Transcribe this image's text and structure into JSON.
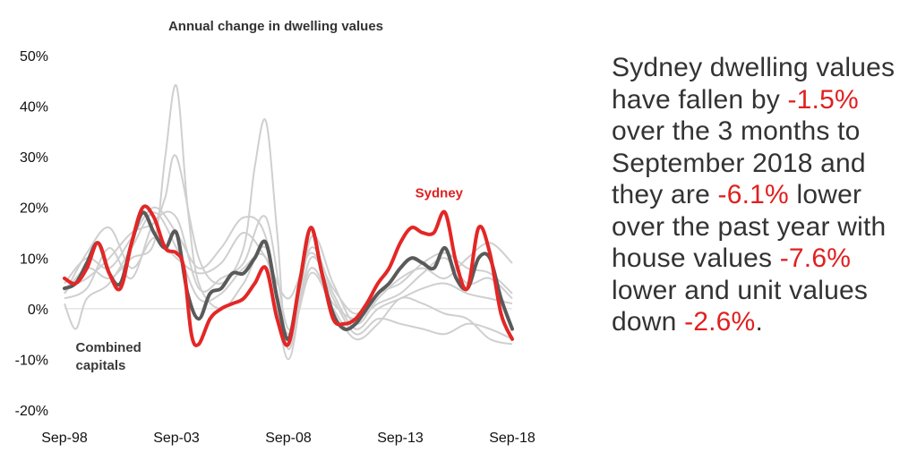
{
  "chart_data": {
    "type": "line",
    "title": "Annual change in dwelling values",
    "ylim": [
      -0.2,
      0.5
    ],
    "yticks": [
      "50%",
      "40%",
      "30%",
      "20%",
      "10%",
      "0%",
      "-10%",
      "-20%"
    ],
    "ytick_values": [
      0.5,
      0.4,
      0.3,
      0.2,
      0.1,
      0.0,
      -0.1,
      -0.2
    ],
    "xlim": [
      "1998-09",
      "2018-09"
    ],
    "xticks": [
      "Sep-98",
      "Sep-03",
      "Sep-08",
      "Sep-13",
      "Sep-18"
    ],
    "xtick_dates": [
      "1998-09",
      "2003-09",
      "2008-09",
      "2013-09",
      "2018-09"
    ],
    "annotations": [
      {
        "text_lines": [
          "Combined",
          "capitals"
        ],
        "color": "#3a3a3a",
        "anchor": {
          "x": "1999-03",
          "y": -0.085
        }
      },
      {
        "text_lines": [
          "Sydney"
        ],
        "color": "#e02020",
        "anchor": {
          "x": "2014-05",
          "y": 0.22
        }
      }
    ],
    "series": [
      {
        "name": "Sydney",
        "role": "highlight",
        "color": "#e32726",
        "points": [
          [
            "1998-09",
            0.06
          ],
          [
            "1999-03",
            0.05
          ],
          [
            "1999-09",
            0.08
          ],
          [
            "2000-03",
            0.13
          ],
          [
            "2000-09",
            0.07
          ],
          [
            "2001-03",
            0.04
          ],
          [
            "2001-09",
            0.13
          ],
          [
            "2002-03",
            0.2
          ],
          [
            "2002-09",
            0.18
          ],
          [
            "2003-03",
            0.12
          ],
          [
            "2003-09",
            0.11
          ],
          [
            "2004-01",
            0.08
          ],
          [
            "2004-05",
            -0.05
          ],
          [
            "2004-09",
            -0.07
          ],
          [
            "2005-03",
            -0.02
          ],
          [
            "2005-09",
            0.0
          ],
          [
            "2006-03",
            0.01
          ],
          [
            "2006-09",
            0.02
          ],
          [
            "2007-03",
            0.05
          ],
          [
            "2007-09",
            0.08
          ],
          [
            "2008-03",
            -0.02
          ],
          [
            "2008-09",
            -0.07
          ],
          [
            "2009-03",
            0.05
          ],
          [
            "2009-09",
            0.16
          ],
          [
            "2010-03",
            0.07
          ],
          [
            "2010-09",
            -0.02
          ],
          [
            "2011-03",
            -0.03
          ],
          [
            "2011-09",
            -0.02
          ],
          [
            "2012-03",
            0.01
          ],
          [
            "2012-09",
            0.05
          ],
          [
            "2013-03",
            0.08
          ],
          [
            "2013-09",
            0.13
          ],
          [
            "2014-03",
            0.16
          ],
          [
            "2014-09",
            0.15
          ],
          [
            "2015-03",
            0.15
          ],
          [
            "2015-09",
            0.19
          ],
          [
            "2016-03",
            0.09
          ],
          [
            "2016-09",
            0.04
          ],
          [
            "2017-03",
            0.16
          ],
          [
            "2017-09",
            0.11
          ],
          [
            "2018-03",
            -0.01
          ],
          [
            "2018-09",
            -0.06
          ]
        ]
      },
      {
        "name": "Combined capitals",
        "role": "highlight",
        "color": "#5a5a5a",
        "points": [
          [
            "1998-09",
            0.04
          ],
          [
            "1999-03",
            0.05
          ],
          [
            "1999-09",
            0.09
          ],
          [
            "2000-03",
            0.13
          ],
          [
            "2000-09",
            0.07
          ],
          [
            "2001-03",
            0.05
          ],
          [
            "2001-09",
            0.13
          ],
          [
            "2002-03",
            0.19
          ],
          [
            "2002-09",
            0.15
          ],
          [
            "2003-03",
            0.12
          ],
          [
            "2003-09",
            0.15
          ],
          [
            "2004-03",
            0.03
          ],
          [
            "2004-09",
            -0.02
          ],
          [
            "2005-03",
            0.03
          ],
          [
            "2005-09",
            0.04
          ],
          [
            "2006-03",
            0.07
          ],
          [
            "2006-09",
            0.07
          ],
          [
            "2007-03",
            0.1
          ],
          [
            "2007-09",
            0.13
          ],
          [
            "2008-03",
            0.02
          ],
          [
            "2008-09",
            -0.06
          ],
          [
            "2009-03",
            0.05
          ],
          [
            "2009-09",
            0.16
          ],
          [
            "2010-03",
            0.07
          ],
          [
            "2010-09",
            -0.01
          ],
          [
            "2011-03",
            -0.04
          ],
          [
            "2011-09",
            -0.03
          ],
          [
            "2012-03",
            0.0
          ],
          [
            "2012-09",
            0.03
          ],
          [
            "2013-03",
            0.05
          ],
          [
            "2013-09",
            0.08
          ],
          [
            "2014-03",
            0.1
          ],
          [
            "2014-09",
            0.09
          ],
          [
            "2015-03",
            0.08
          ],
          [
            "2015-09",
            0.12
          ],
          [
            "2016-03",
            0.06
          ],
          [
            "2016-09",
            0.04
          ],
          [
            "2017-03",
            0.1
          ],
          [
            "2017-09",
            0.1
          ],
          [
            "2018-03",
            0.02
          ],
          [
            "2018-09",
            -0.04
          ]
        ]
      },
      {
        "role": "context",
        "color": "#cfcfcf",
        "points": [
          [
            "1998-09",
            0.03
          ],
          [
            "1999-09",
            0.08
          ],
          [
            "2000-09",
            0.06
          ],
          [
            "2001-09",
            0.1
          ],
          [
            "2002-09",
            0.13
          ],
          [
            "2003-03",
            0.3
          ],
          [
            "2003-09",
            0.44
          ],
          [
            "2004-03",
            0.2
          ],
          [
            "2004-09",
            0.05
          ],
          [
            "2005-09",
            0.0
          ],
          [
            "2006-09",
            0.05
          ],
          [
            "2007-09",
            0.12
          ],
          [
            "2008-09",
            -0.05
          ],
          [
            "2009-09",
            0.12
          ],
          [
            "2010-09",
            0.03
          ],
          [
            "2011-09",
            -0.04
          ],
          [
            "2012-09",
            0.0
          ],
          [
            "2013-09",
            0.02
          ],
          [
            "2014-09",
            0.04
          ],
          [
            "2015-09",
            0.05
          ],
          [
            "2016-09",
            0.03
          ],
          [
            "2017-09",
            0.02
          ],
          [
            "2018-09",
            0.01
          ]
        ]
      },
      {
        "role": "context",
        "color": "#cfcfcf",
        "points": [
          [
            "1998-09",
            0.04
          ],
          [
            "1999-09",
            0.06
          ],
          [
            "2000-09",
            0.1
          ],
          [
            "2001-09",
            0.15
          ],
          [
            "2002-09",
            0.17
          ],
          [
            "2003-03",
            0.22
          ],
          [
            "2003-09",
            0.3
          ],
          [
            "2004-09",
            0.1
          ],
          [
            "2005-09",
            0.05
          ],
          [
            "2006-09",
            0.12
          ],
          [
            "2007-03",
            0.28
          ],
          [
            "2007-09",
            0.37
          ],
          [
            "2008-03",
            0.15
          ],
          [
            "2008-09",
            -0.08
          ],
          [
            "2009-09",
            0.1
          ],
          [
            "2010-09",
            0.02
          ],
          [
            "2011-09",
            -0.05
          ],
          [
            "2012-09",
            -0.02
          ],
          [
            "2013-09",
            -0.03
          ],
          [
            "2014-09",
            -0.04
          ],
          [
            "2015-09",
            -0.05
          ],
          [
            "2016-09",
            -0.03
          ],
          [
            "2017-09",
            -0.04
          ],
          [
            "2018-09",
            -0.06
          ]
        ]
      },
      {
        "role": "context",
        "color": "#cfcfcf",
        "points": [
          [
            "1998-09",
            0.05
          ],
          [
            "1999-09",
            0.1
          ],
          [
            "2000-09",
            0.08
          ],
          [
            "2001-09",
            0.14
          ],
          [
            "2002-09",
            0.2
          ],
          [
            "2003-09",
            0.15
          ],
          [
            "2004-09",
            0.08
          ],
          [
            "2005-09",
            0.12
          ],
          [
            "2006-09",
            0.18
          ],
          [
            "2007-09",
            0.14
          ],
          [
            "2008-09",
            -0.1
          ],
          [
            "2009-09",
            0.14
          ],
          [
            "2010-09",
            0.05
          ],
          [
            "2011-09",
            -0.03
          ],
          [
            "2012-09",
            0.02
          ],
          [
            "2013-09",
            0.06
          ],
          [
            "2014-09",
            0.08
          ],
          [
            "2015-09",
            0.06
          ],
          [
            "2016-09",
            0.1
          ],
          [
            "2017-09",
            0.13
          ],
          [
            "2018-09",
            0.09
          ]
        ]
      },
      {
        "role": "context",
        "color": "#cfcfcf",
        "points": [
          [
            "1998-09",
            0.02
          ],
          [
            "1999-09",
            0.04
          ],
          [
            "2000-09",
            0.12
          ],
          [
            "2001-09",
            0.06
          ],
          [
            "2002-09",
            0.17
          ],
          [
            "2003-09",
            0.18
          ],
          [
            "2004-09",
            0.04
          ],
          [
            "2005-09",
            0.06
          ],
          [
            "2006-09",
            0.09
          ],
          [
            "2007-09",
            0.18
          ],
          [
            "2008-09",
            -0.04
          ],
          [
            "2009-09",
            0.08
          ],
          [
            "2010-09",
            0.01
          ],
          [
            "2011-09",
            -0.02
          ],
          [
            "2012-09",
            0.01
          ],
          [
            "2013-09",
            0.03
          ],
          [
            "2014-09",
            0.07
          ],
          [
            "2015-09",
            0.1
          ],
          [
            "2016-09",
            0.05
          ],
          [
            "2017-09",
            0.06
          ],
          [
            "2018-09",
            0.02
          ]
        ]
      },
      {
        "role": "context",
        "color": "#cfcfcf",
        "points": [
          [
            "1998-09",
            0.01
          ],
          [
            "1999-03",
            -0.04
          ],
          [
            "1999-09",
            0.02
          ],
          [
            "2000-09",
            0.05
          ],
          [
            "2001-09",
            0.12
          ],
          [
            "2002-09",
            0.19
          ],
          [
            "2003-09",
            0.12
          ],
          [
            "2004-09",
            0.02
          ],
          [
            "2005-09",
            0.03
          ],
          [
            "2006-09",
            0.08
          ],
          [
            "2007-09",
            0.1
          ],
          [
            "2008-09",
            -0.06
          ],
          [
            "2009-09",
            0.07
          ],
          [
            "2010-09",
            0.0
          ],
          [
            "2011-09",
            -0.06
          ],
          [
            "2012-09",
            -0.03
          ],
          [
            "2013-09",
            0.02
          ],
          [
            "2014-09",
            0.01
          ],
          [
            "2015-09",
            -0.01
          ],
          [
            "2016-09",
            -0.02
          ],
          [
            "2017-09",
            -0.06
          ],
          [
            "2018-09",
            -0.07
          ]
        ]
      },
      {
        "role": "context",
        "color": "#cfcfcf",
        "points": [
          [
            "1998-09",
            0.03
          ],
          [
            "1999-09",
            0.11
          ],
          [
            "2000-09",
            0.16
          ],
          [
            "2001-09",
            0.08
          ],
          [
            "2002-09",
            0.14
          ],
          [
            "2003-09",
            0.1
          ],
          [
            "2004-09",
            0.07
          ],
          [
            "2005-09",
            0.09
          ],
          [
            "2006-09",
            0.15
          ],
          [
            "2007-09",
            0.1
          ],
          [
            "2008-09",
            0.02
          ],
          [
            "2009-09",
            0.11
          ],
          [
            "2010-09",
            0.04
          ],
          [
            "2011-09",
            -0.01
          ],
          [
            "2012-09",
            0.03
          ],
          [
            "2013-09",
            0.05
          ],
          [
            "2014-09",
            0.09
          ],
          [
            "2015-09",
            0.11
          ],
          [
            "2016-09",
            0.08
          ],
          [
            "2017-09",
            0.07
          ],
          [
            "2018-09",
            0.03
          ]
        ]
      }
    ]
  },
  "side_text": [
    {
      "text": "Sydney dwelling values have fallen by ",
      "highlight": false
    },
    {
      "text": "-1.5%",
      "highlight": true
    },
    {
      "text": " over the 3 months to September 2018 and they are ",
      "highlight": false
    },
    {
      "text": "-6.1%",
      "highlight": true
    },
    {
      "text": " lower over the past year  with house values ",
      "highlight": false
    },
    {
      "text": "-7.6%",
      "highlight": true
    },
    {
      "text": " lower and unit values down ",
      "highlight": false
    },
    {
      "text": "-2.6%",
      "highlight": true
    },
    {
      "text": ".",
      "highlight": false
    }
  ]
}
